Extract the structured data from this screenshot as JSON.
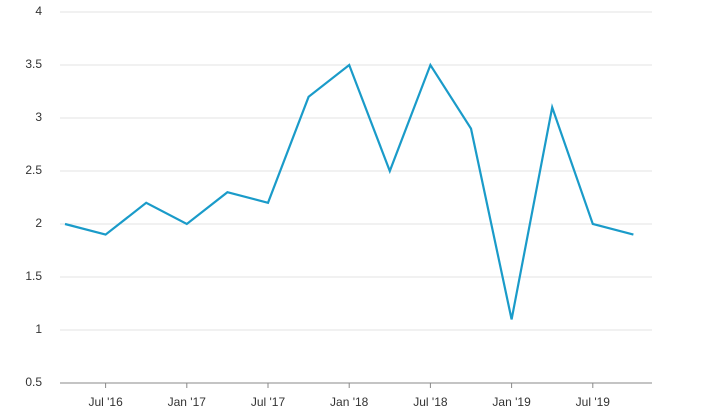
{
  "chart_data": {
    "type": "line",
    "categories": [
      null,
      "Jul '16",
      null,
      "Jan '17",
      null,
      "Jul '17",
      null,
      "Jan '18",
      null,
      "Jul '18",
      null,
      "Jan '19",
      null,
      "Jul '19",
      null
    ],
    "series": [
      {
        "color": "#1a9bc9",
        "values": [
          2.0,
          1.9,
          2.2,
          2.0,
          2.3,
          2.2,
          3.2,
          3.5,
          2.5,
          3.5,
          2.9,
          1.1,
          3.1,
          2.0,
          1.9
        ]
      }
    ],
    "ylim": [
      0.5,
      4
    ],
    "yticks": [
      0.5,
      1,
      1.5,
      2,
      2.5,
      3,
      3.5,
      4
    ],
    "grid": true
  }
}
